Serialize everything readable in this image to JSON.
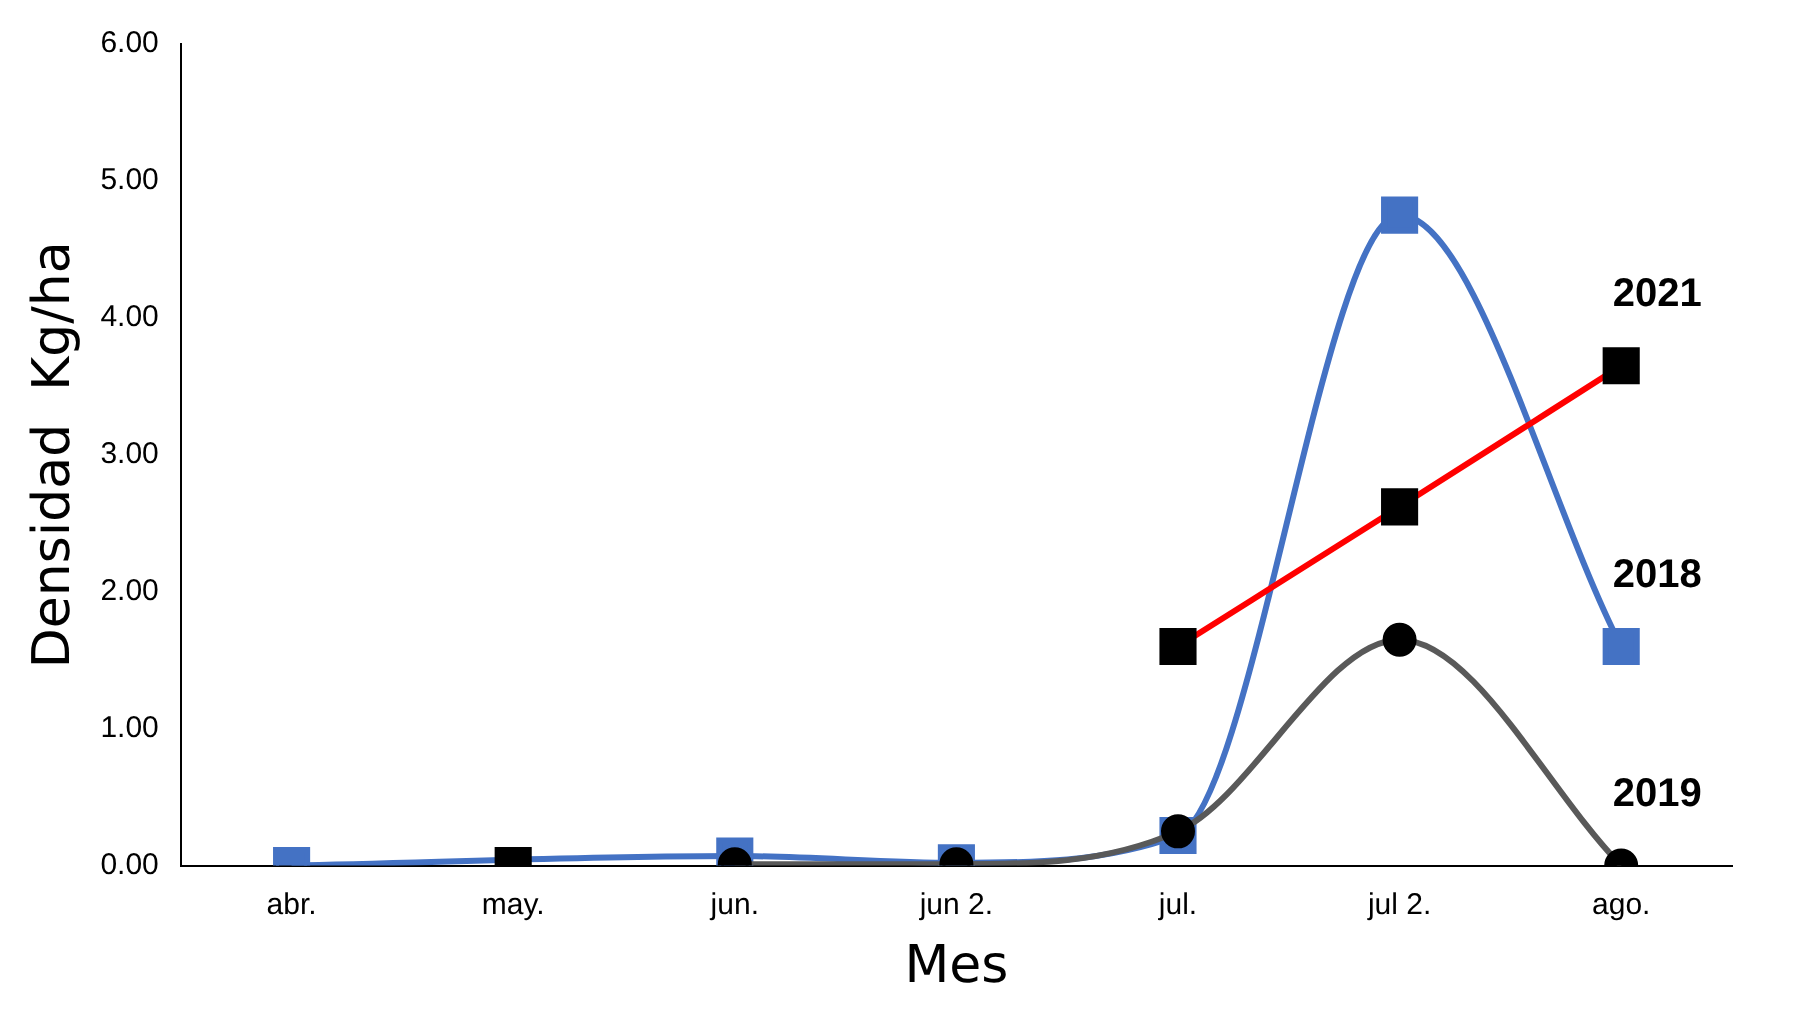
{
  "chart_data": {
    "type": "line",
    "xlabel": "Mes",
    "ylabel": "Densidad  Kg/ha",
    "categories": [
      "abr.",
      "may.",
      "jun.",
      "jun 2.",
      "jul.",
      "jul 2.",
      "ago."
    ],
    "series": [
      {
        "name": "2021",
        "color": "#ff0000",
        "marker": "square",
        "colors": [
          null,
          "#000000",
          null,
          null,
          "#000000",
          "#000000",
          "#000000"
        ],
        "values": [
          null,
          0.0,
          null,
          null,
          1.6,
          2.62,
          3.65
        ]
      },
      {
        "name": "2019",
        "color": "#595959",
        "marker": "circle",
        "colors": [
          null,
          null,
          "#000000",
          "#000000",
          "#000000",
          "#000000",
          "#000000"
        ],
        "values": [
          null,
          null,
          0.01,
          0.01,
          0.25,
          1.65,
          0.0
        ]
      },
      {
        "name": "2018",
        "color": "#4472c4",
        "marker": "square",
        "colors": [
          "#4472c4",
          "#4472c4",
          "#4472c4",
          "#4472c4",
          "#4472c4",
          "#4472c4",
          "#4472c4"
        ],
        "values": [
          0.0,
          null,
          0.07,
          0.02,
          0.22,
          4.75,
          1.6
        ]
      }
    ],
    "ylim": [
      0,
      6
    ],
    "yticks": [
      {
        "value": 0,
        "label": "0.00"
      },
      {
        "value": 1,
        "label": "1.00"
      },
      {
        "value": 2,
        "label": "2.00"
      },
      {
        "value": 3,
        "label": "3.00"
      },
      {
        "value": 4,
        "label": "4.00"
      },
      {
        "value": 5,
        "label": "5.00"
      },
      {
        "value": 6,
        "label": "6.00"
      }
    ],
    "grid": false,
    "legend": false
  }
}
